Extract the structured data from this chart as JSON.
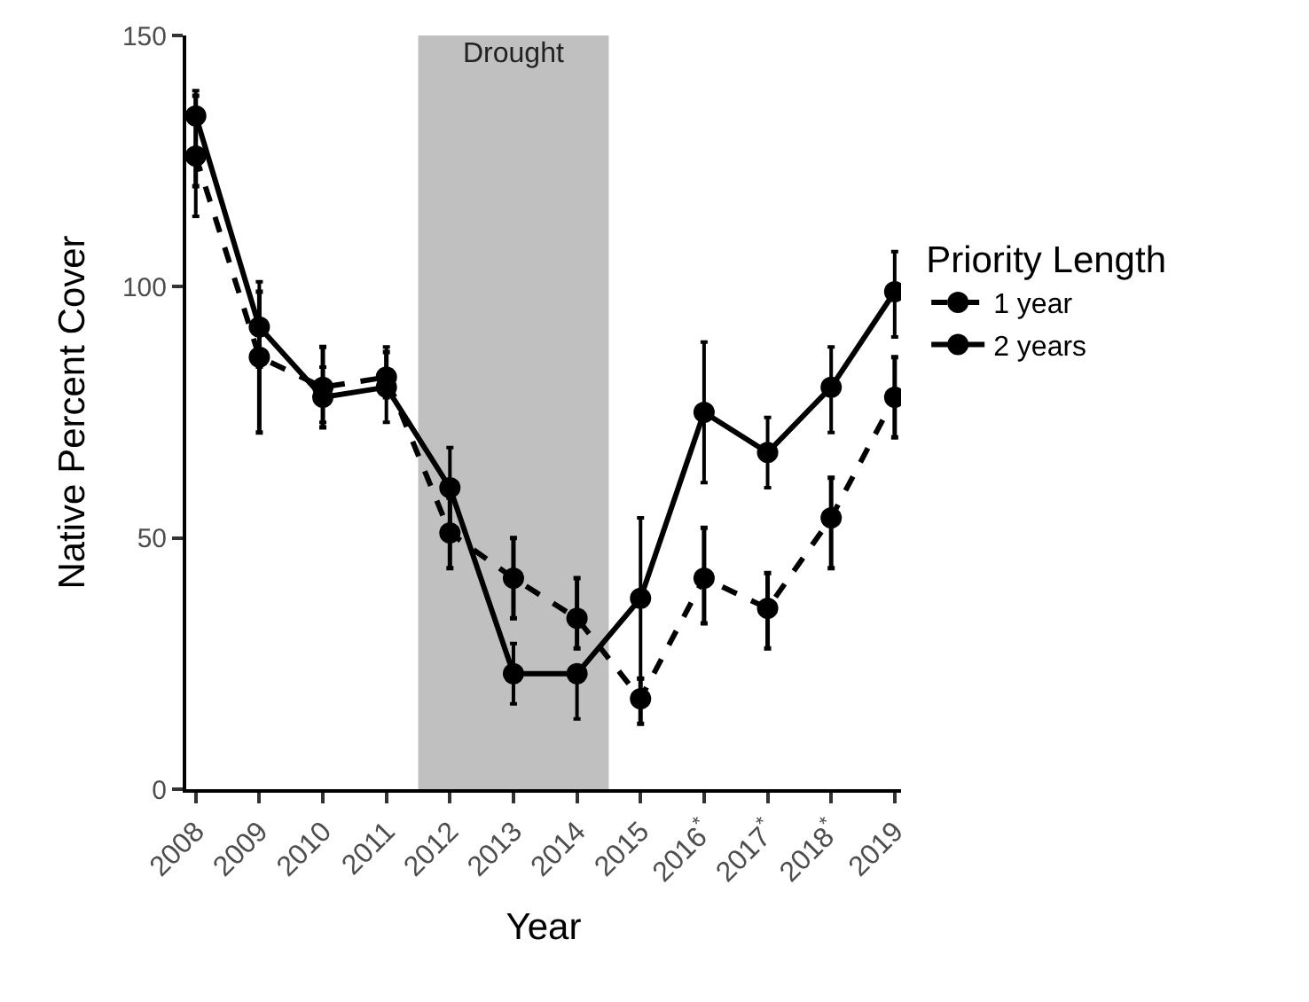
{
  "chart_data": {
    "type": "line",
    "xlabel": "Year",
    "ylabel": "Native Percent Cover",
    "legend_title": "Priority Length",
    "x": [
      2008,
      2009,
      2010,
      2011,
      2012,
      2013,
      2014,
      2015,
      2016,
      2017,
      2018,
      2019
    ],
    "series": [
      {
        "name": "1 year",
        "color": "#000000",
        "line_style": "dashed",
        "values": [
          126,
          86,
          80,
          82,
          51,
          42,
          34,
          18,
          42,
          36,
          54,
          78
        ],
        "errors": [
          [
            120,
            138
          ],
          [
            71,
            99
          ],
          [
            72,
            88
          ],
          [
            78,
            87
          ],
          [
            44,
            58
          ],
          [
            34,
            50
          ],
          [
            28,
            42
          ],
          [
            13,
            22
          ],
          [
            33,
            52
          ],
          [
            28,
            43
          ],
          [
            44,
            62
          ],
          [
            70,
            86
          ]
        ]
      },
      {
        "name": "2 years",
        "color": "#000000",
        "line_style": "solid",
        "values": [
          134,
          92,
          78,
          80,
          60,
          23,
          23,
          38,
          75,
          67,
          80,
          99
        ],
        "errors": [
          [
            114,
            139
          ],
          [
            84,
            101
          ],
          [
            73,
            84
          ],
          [
            73,
            88
          ],
          [
            52,
            68
          ],
          [
            17,
            29
          ],
          [
            14,
            23
          ],
          [
            22,
            54
          ],
          [
            61,
            89
          ],
          [
            60,
            74
          ],
          [
            71,
            88
          ],
          [
            90,
            107
          ]
        ]
      }
    ],
    "marker": "circle",
    "xlim": [
      2007.85,
      2019.1
    ],
    "xticks": [
      2008,
      2009,
      2010,
      2011,
      2012,
      2013,
      2014,
      2015,
      {
        "value": 2016,
        "label": "2016$^{*}$"
      },
      {
        "value": 2017,
        "label": "2017$^{*}$"
      },
      {
        "value": 2018,
        "label": "2018$^{*}$"
      },
      2019
    ],
    "ylim": [
      0,
      150
    ],
    "yticks": [
      0,
      50,
      100,
      150
    ],
    "bands": [
      {
        "axis": "x",
        "from": 2011.5,
        "to": 2014.5,
        "label": "Drought",
        "color": "#c0c0c0"
      }
    ],
    "grid": false,
    "legend": "right"
  }
}
